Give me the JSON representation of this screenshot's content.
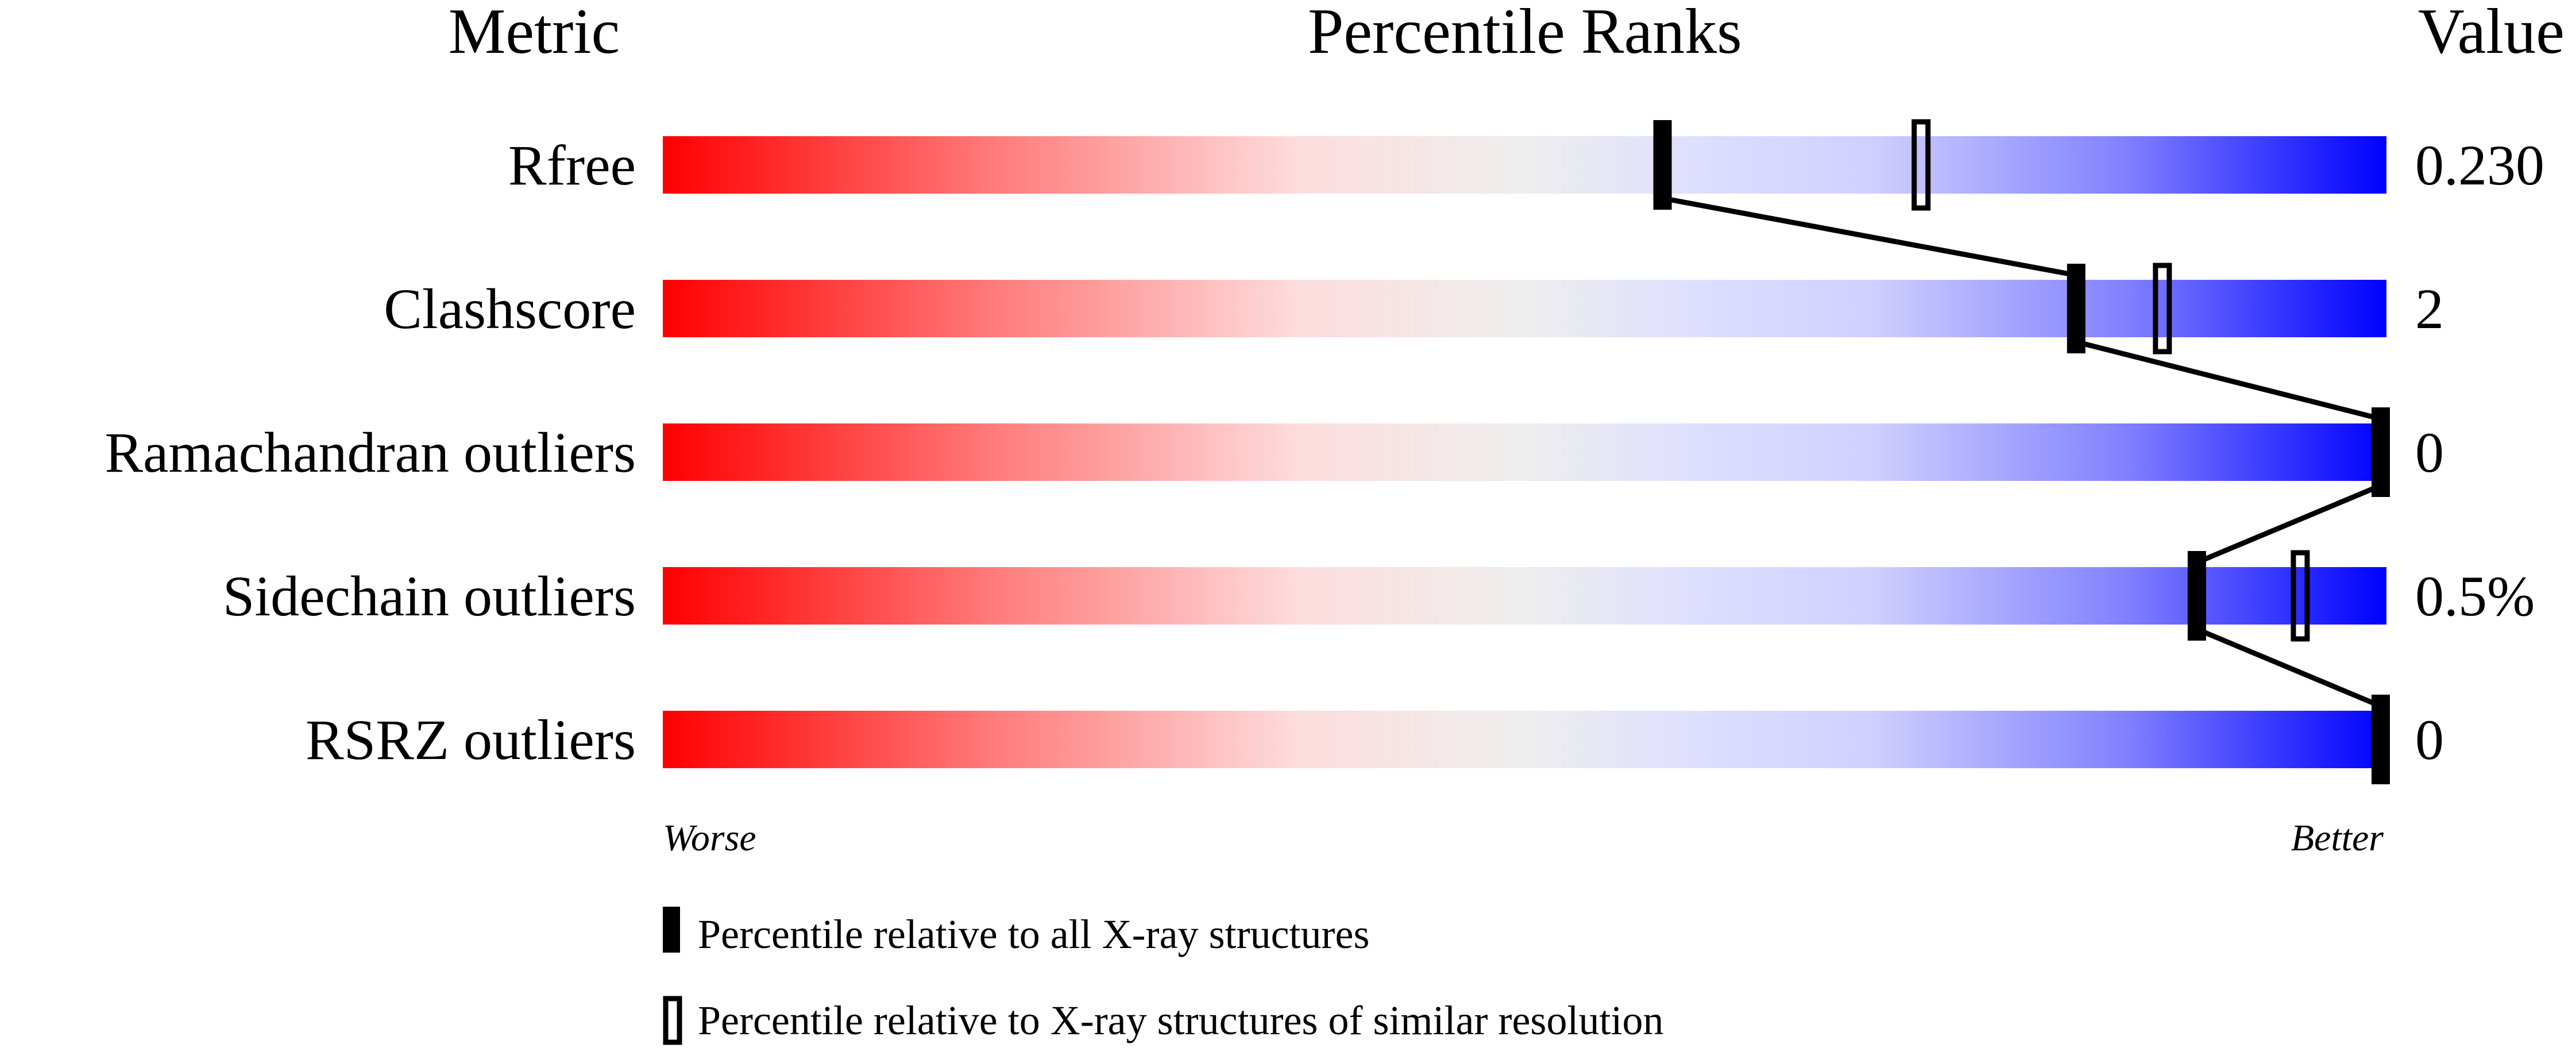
{
  "chart_data": {
    "type": "bar",
    "headers": {
      "metric": "Metric",
      "ranks": "Percentile Ranks",
      "value": "Value"
    },
    "axis": {
      "left_label": "Worse",
      "right_label": "Better",
      "range": [
        0,
        100
      ]
    },
    "gradient_colors": [
      "#ff0000",
      "#ff8080",
      "#fddddd",
      "#eeeeee",
      "#dedeff",
      "#d0d0ff",
      "#8080ff",
      "#0000ff"
    ],
    "rows": [
      {
        "metric": "Rfree",
        "value": "0.230",
        "percentile_all": 58,
        "percentile_similar": 73
      },
      {
        "metric": "Clashscore",
        "value": "2",
        "percentile_all": 82,
        "percentile_similar": 87
      },
      {
        "metric": "Ramachandran outliers",
        "value": "0",
        "percentile_all": 100,
        "percentile_similar": null
      },
      {
        "metric": "Sidechain outliers",
        "value": "0.5%",
        "percentile_all": 89,
        "percentile_similar": 95
      },
      {
        "metric": "RSRZ outliers",
        "value": "0",
        "percentile_all": 100,
        "percentile_similar": null
      }
    ],
    "legend": [
      {
        "marker": "filled",
        "label": "Percentile relative to all X-ray structures"
      },
      {
        "marker": "open",
        "label": "Percentile relative to X-ray structures of similar resolution"
      }
    ]
  }
}
